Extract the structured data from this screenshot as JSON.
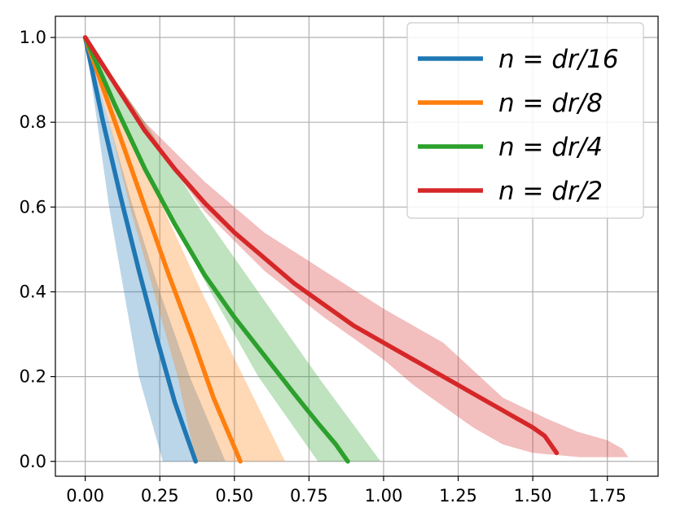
{
  "chart_data": {
    "type": "line",
    "title": "",
    "xlabel": "",
    "ylabel": "",
    "xlim": [
      -0.1,
      1.92
    ],
    "ylim": [
      -0.035,
      1.05
    ],
    "x_ticks": [
      "0.00",
      "0.25",
      "0.50",
      "0.75",
      "1.00",
      "1.25",
      "1.50",
      "1.75"
    ],
    "y_ticks": [
      "0.0",
      "0.2",
      "0.4",
      "0.6",
      "0.8",
      "1.0"
    ],
    "grid": true,
    "legend_position": "top-right",
    "series": [
      {
        "name": "n = dr/16",
        "color": "#1f77b4",
        "x": [
          0.0,
          0.06,
          0.12,
          0.18,
          0.24,
          0.3,
          0.35,
          0.37
        ],
        "y": [
          1.0,
          0.8,
          0.62,
          0.45,
          0.29,
          0.14,
          0.04,
          0.0
        ],
        "band_lower": [
          [
            0.0,
            1.0
          ],
          [
            0.04,
            0.8
          ],
          [
            0.08,
            0.6
          ],
          [
            0.13,
            0.4
          ],
          [
            0.18,
            0.2
          ],
          [
            0.26,
            0.0
          ]
        ],
        "band_upper": [
          [
            0.0,
            1.0
          ],
          [
            0.08,
            0.8
          ],
          [
            0.16,
            0.6
          ],
          [
            0.25,
            0.4
          ],
          [
            0.35,
            0.2
          ],
          [
            0.47,
            0.0
          ]
        ]
      },
      {
        "name": "n = dr/8",
        "color": "#ff7f0e",
        "x": [
          0.0,
          0.1,
          0.2,
          0.28,
          0.36,
          0.43,
          0.49,
          0.52
        ],
        "y": [
          1.0,
          0.8,
          0.6,
          0.44,
          0.29,
          0.15,
          0.05,
          0.0
        ],
        "band_lower": [
          [
            0.0,
            1.0
          ],
          [
            0.08,
            0.8
          ],
          [
            0.15,
            0.6
          ],
          [
            0.23,
            0.4
          ],
          [
            0.31,
            0.2
          ],
          [
            0.37,
            0.0
          ]
        ],
        "band_upper": [
          [
            0.0,
            1.0
          ],
          [
            0.13,
            0.8
          ],
          [
            0.26,
            0.6
          ],
          [
            0.39,
            0.4
          ],
          [
            0.53,
            0.2
          ],
          [
            0.67,
            0.0
          ]
        ]
      },
      {
        "name": "n = dr/4",
        "color": "#2ca02c",
        "x": [
          0.0,
          0.1,
          0.2,
          0.3,
          0.4,
          0.5,
          0.6,
          0.7,
          0.78,
          0.84,
          0.88
        ],
        "y": [
          1.0,
          0.84,
          0.69,
          0.56,
          0.44,
          0.34,
          0.25,
          0.16,
          0.09,
          0.04,
          0.0
        ],
        "band_lower": [
          [
            0.0,
            1.0
          ],
          [
            0.13,
            0.8
          ],
          [
            0.27,
            0.6
          ],
          [
            0.42,
            0.4
          ],
          [
            0.58,
            0.2
          ],
          [
            0.78,
            0.0
          ]
        ],
        "band_upper": [
          [
            0.0,
            1.0
          ],
          [
            0.2,
            0.8
          ],
          [
            0.38,
            0.6
          ],
          [
            0.58,
            0.4
          ],
          [
            0.78,
            0.2
          ],
          [
            0.99,
            0.0
          ]
        ]
      },
      {
        "name": "n = dr/2",
        "color": "#d62728",
        "x": [
          0.0,
          0.1,
          0.2,
          0.3,
          0.4,
          0.5,
          0.6,
          0.7,
          0.8,
          0.9,
          1.0,
          1.1,
          1.2,
          1.25,
          1.3,
          1.35,
          1.4,
          1.45,
          1.5,
          1.54,
          1.56,
          1.57,
          1.58
        ],
        "y": [
          1.0,
          0.89,
          0.78,
          0.69,
          0.61,
          0.54,
          0.48,
          0.42,
          0.37,
          0.32,
          0.28,
          0.24,
          0.2,
          0.18,
          0.16,
          0.14,
          0.12,
          0.1,
          0.08,
          0.06,
          0.04,
          0.03,
          0.02
        ],
        "band_lower": [
          [
            0.0,
            1.0
          ],
          [
            0.2,
            0.78
          ],
          [
            0.4,
            0.59
          ],
          [
            0.6,
            0.45
          ],
          [
            0.8,
            0.34
          ],
          [
            1.0,
            0.24
          ],
          [
            1.1,
            0.18
          ],
          [
            1.2,
            0.13
          ],
          [
            1.3,
            0.08
          ],
          [
            1.4,
            0.04
          ],
          [
            1.5,
            0.02
          ],
          [
            1.66,
            0.01
          ]
        ],
        "band_upper": [
          [
            0.0,
            1.0
          ],
          [
            0.2,
            0.8
          ],
          [
            0.4,
            0.66
          ],
          [
            0.6,
            0.54
          ],
          [
            0.8,
            0.45
          ],
          [
            1.0,
            0.36
          ],
          [
            1.2,
            0.28
          ],
          [
            1.4,
            0.15
          ],
          [
            1.55,
            0.1
          ],
          [
            1.65,
            0.07
          ],
          [
            1.75,
            0.05
          ],
          [
            1.8,
            0.03
          ],
          [
            1.82,
            0.01
          ]
        ]
      }
    ]
  }
}
